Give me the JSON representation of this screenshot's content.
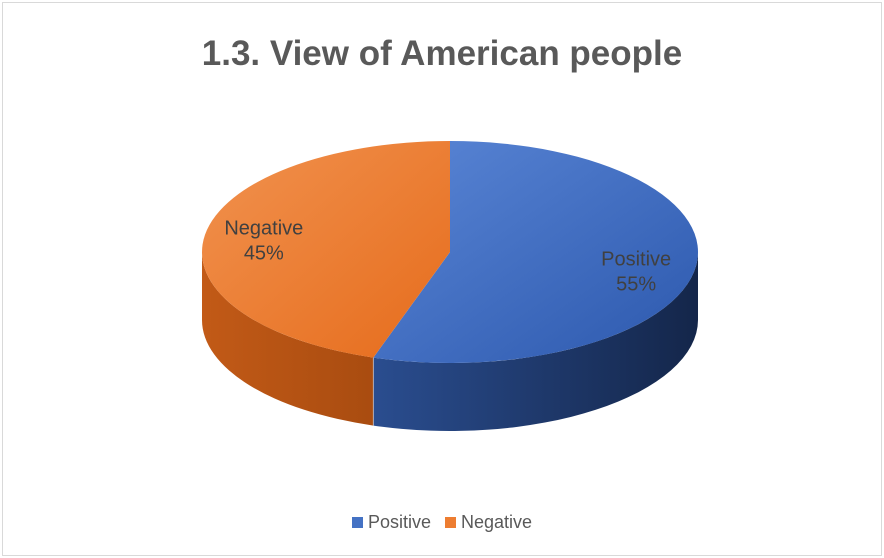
{
  "chart_data": {
    "type": "pie",
    "title": "1.3. View of American people",
    "categories": [
      "Positive",
      "Negative"
    ],
    "values": [
      55,
      45
    ],
    "data_labels": [
      {
        "name": "Positive",
        "percent": "55%"
      },
      {
        "name": "Negative",
        "percent": "45%"
      }
    ],
    "colors": [
      "#4472c4",
      "#ed7d31"
    ],
    "legend": {
      "position": "bottom",
      "entries": [
        "Positive",
        "Negative"
      ]
    },
    "style": "3d"
  }
}
